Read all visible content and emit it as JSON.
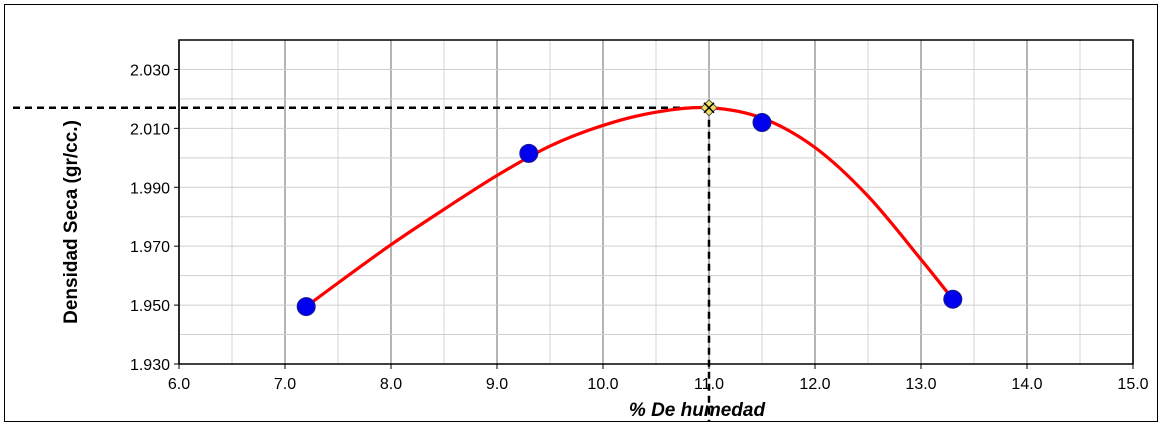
{
  "chart_data": {
    "type": "scatter",
    "title": "",
    "xlabel": "% De humedad",
    "ylabel": "Densidad Seca (gr/cc.)",
    "xlim": [
      6.0,
      15.0
    ],
    "ylim": [
      1.93,
      2.04
    ],
    "x_ticks": [
      "6.0",
      "7.0",
      "8.0",
      "9.0",
      "10.0",
      "11.0",
      "12.0",
      "13.0",
      "14.0",
      "15.0"
    ],
    "y_ticks": [
      "1.930",
      "1.950",
      "1.970",
      "1.990",
      "2.010",
      "2.030"
    ],
    "grid": true,
    "points": [
      {
        "x": 7.2,
        "y": 1.9495
      },
      {
        "x": 9.3,
        "y": 2.0015
      },
      {
        "x": 11.5,
        "y": 2.012
      },
      {
        "x": 13.3,
        "y": 1.952
      }
    ],
    "fit_curve": [
      {
        "x": 7.2,
        "y": 1.9495
      },
      {
        "x": 7.5,
        "y": 1.9575
      },
      {
        "x": 8.0,
        "y": 1.9705
      },
      {
        "x": 8.5,
        "y": 1.9825
      },
      {
        "x": 9.0,
        "y": 1.994
      },
      {
        "x": 9.5,
        "y": 2.004
      },
      {
        "x": 10.0,
        "y": 2.011
      },
      {
        "x": 10.5,
        "y": 2.0155
      },
      {
        "x": 11.0,
        "y": 2.017
      },
      {
        "x": 11.5,
        "y": 2.0135
      },
      {
        "x": 12.0,
        "y": 2.0035
      },
      {
        "x": 12.5,
        "y": 1.987
      },
      {
        "x": 13.0,
        "y": 1.9655
      },
      {
        "x": 13.3,
        "y": 1.952
      }
    ],
    "optimum": {
      "x": 11.0,
      "y": 2.017
    },
    "colors": {
      "curve": "#ff0000",
      "points": "#0000ee",
      "optimum_marker": "#f0e060",
      "guide_lines": "#000000",
      "grid": "#c8c8c8"
    }
  }
}
